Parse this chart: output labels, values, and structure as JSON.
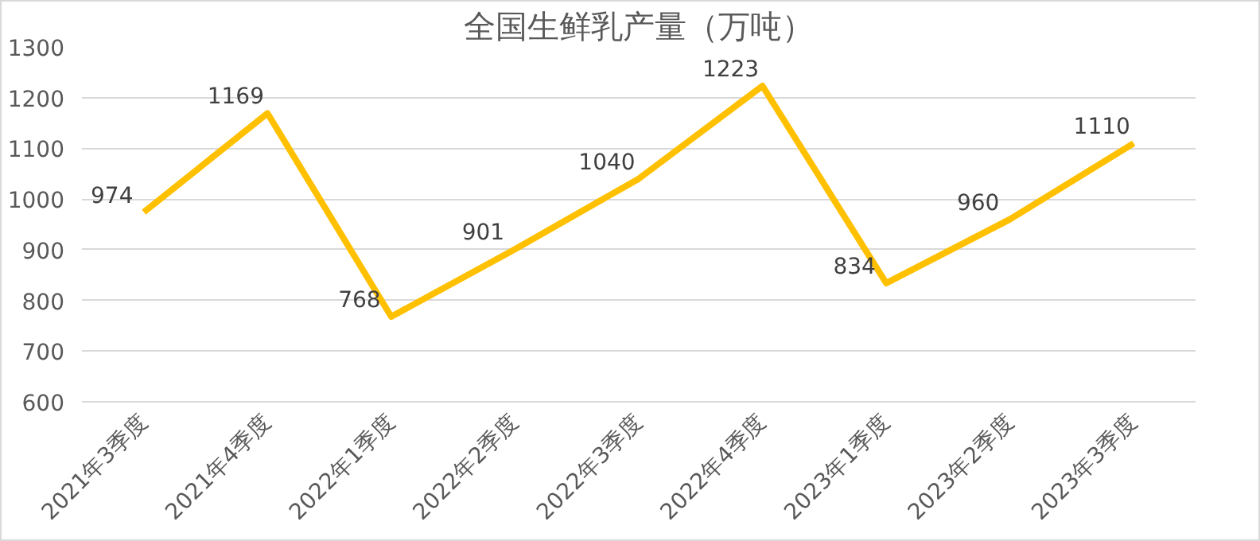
{
  "chart_data": {
    "type": "line",
    "title": "全国生鲜乳产量（万吨）",
    "categories": [
      "2021年3季度",
      "2021年4季度",
      "2022年1季度",
      "2022年2季度",
      "2022年3季度",
      "2022年4季度",
      "2023年1季度",
      "2023年2季度",
      "2023年3季度"
    ],
    "series": [
      {
        "color": "#ffc000",
        "values": [
          974,
          1169,
          768,
          901,
          1040,
          1223,
          834,
          960,
          1110
        ]
      }
    ],
    "ylim": [
      600,
      1300
    ],
    "yticks": [
      600,
      700,
      800,
      900,
      1000,
      1100,
      1200,
      1300
    ],
    "grid": "y",
    "data_labels": true,
    "marker": "none",
    "line_style": "solid"
  }
}
